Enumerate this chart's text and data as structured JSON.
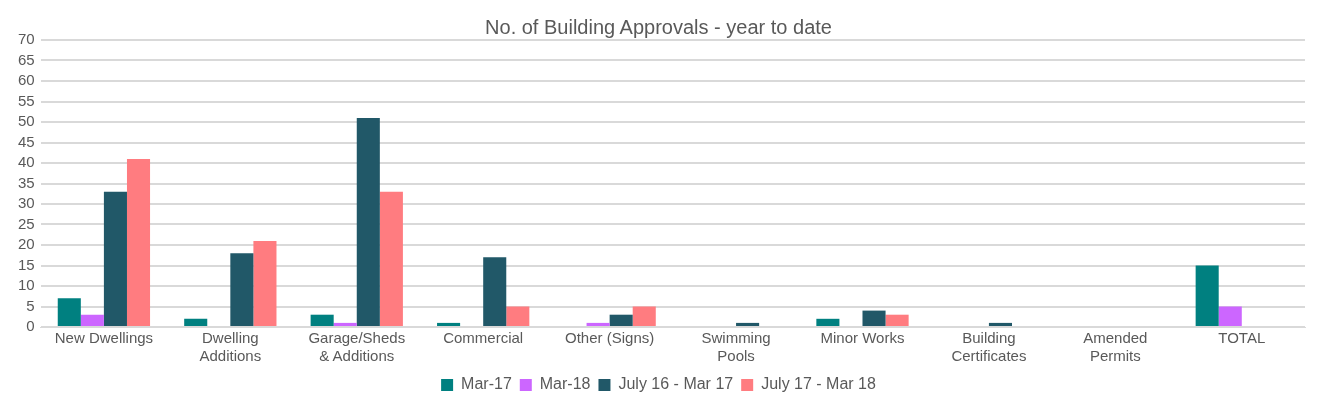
{
  "chart_data": {
    "type": "bar",
    "title": "No. of Building Approvals - year to date",
    "categories": [
      "New Dwellings",
      "Dwelling Additions",
      "Garage/Sheds & Additions",
      "Commercial",
      "Other (Signs)",
      "Swimming Pools",
      "Minor Works",
      "Building Certificates",
      "Amended Permits",
      "TOTAL"
    ],
    "series": [
      {
        "name": "Mar-17",
        "color": "#008080",
        "values": [
          7,
          2,
          3,
          1,
          0,
          0,
          2,
          0,
          0,
          15
        ]
      },
      {
        "name": "Mar-18",
        "color": "#cc66ff",
        "values": [
          3,
          0,
          1,
          0,
          1,
          0,
          0,
          0,
          0,
          5
        ]
      },
      {
        "name": "July 16 - Mar 17",
        "color": "#215868",
        "values": [
          33,
          18,
          51,
          17,
          3,
          1,
          4,
          1,
          0,
          null
        ]
      },
      {
        "name": "July 17 - Mar 18",
        "color": "#ff7c80",
        "values": [
          41,
          21,
          33,
          5,
          5,
          0,
          3,
          0,
          0,
          null
        ]
      }
    ],
    "ylim": [
      0,
      70
    ],
    "yticks": [
      0,
      5,
      10,
      15,
      20,
      25,
      30,
      35,
      40,
      45,
      50,
      55,
      60,
      65,
      70
    ],
    "grid": "y",
    "legend": "bottom"
  }
}
